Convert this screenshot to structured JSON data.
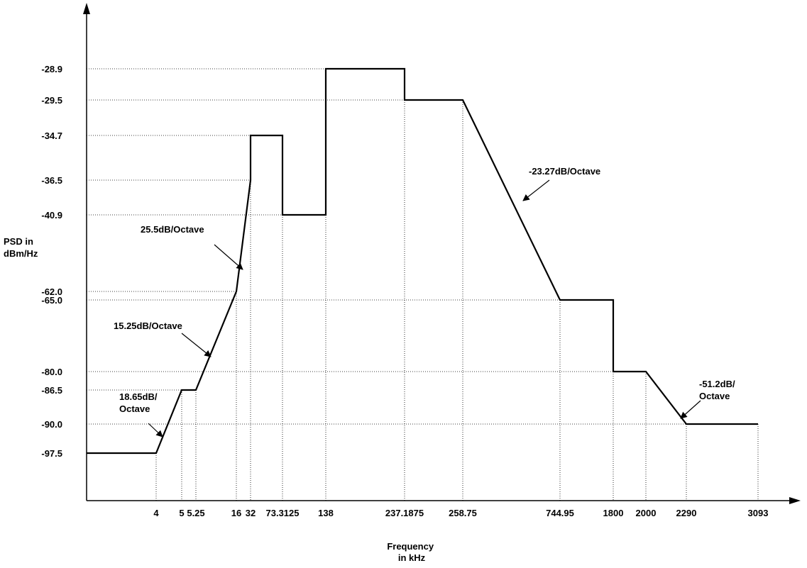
{
  "chart_data": {
    "type": "line",
    "title": "",
    "xlabel": "Frequency in kHz",
    "ylabel": "PSD in dBm/Hz",
    "x_ticks": [
      "4",
      "5",
      "5.25",
      "16",
      "32",
      "73.3125",
      "138",
      "237.1875",
      "258.75",
      "744.95",
      "1800",
      "2000",
      "2290",
      "3093"
    ],
    "y_ticks": [
      "-28.9",
      "-29.5",
      "-34.7",
      "-36.5",
      "-40.9",
      "-62.0",
      "-65.0",
      "-80.0",
      "-86.5",
      "-90.0",
      "-97.5"
    ],
    "grid": "dotted reference lines at tick values",
    "legend": "none",
    "series": [
      {
        "points": [
          {
            "x": 0,
            "y": -97.5
          },
          {
            "x": 4,
            "y": -97.5
          },
          {
            "x": 5,
            "y": -86.5
          },
          {
            "x": 5.25,
            "y": -86.5
          },
          {
            "x": 16,
            "y": -62.0
          },
          {
            "x": 32,
            "y": -36.5
          },
          {
            "x": 32,
            "y": -34.7
          },
          {
            "x": 73.3125,
            "y": -34.7
          },
          {
            "x": 73.3125,
            "y": -40.9
          },
          {
            "x": 138,
            "y": -40.9
          },
          {
            "x": 138,
            "y": -28.9
          },
          {
            "x": 237.1875,
            "y": -28.9
          },
          {
            "x": 237.1875,
            "y": -29.5
          },
          {
            "x": 258.75,
            "y": -29.5
          },
          {
            "x": 744.95,
            "y": -65.0
          },
          {
            "x": 1800,
            "y": -65.0
          },
          {
            "x": 1800,
            "y": -80.0
          },
          {
            "x": 2000,
            "y": -80.0
          },
          {
            "x": 2290,
            "y": -90.0
          },
          {
            "x": 3093,
            "y": -90.0
          }
        ]
      }
    ],
    "annotations": [
      {
        "lines": [
          "25.5dB/Octave"
        ]
      },
      {
        "lines": [
          "15.25dB/Octave"
        ]
      },
      {
        "lines": [
          "18.65dB/",
          "Octave"
        ]
      },
      {
        "lines": [
          "-23.27dB/Octave"
        ]
      },
      {
        "lines": [
          "-51.2dB/",
          "Octave"
        ]
      }
    ]
  }
}
